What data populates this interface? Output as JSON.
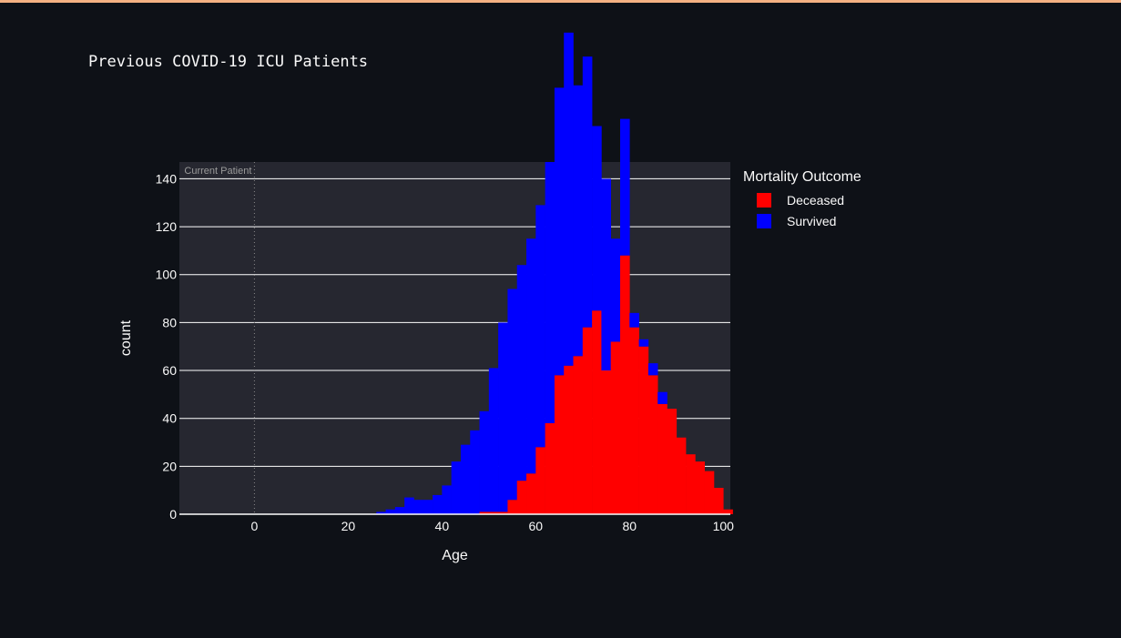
{
  "page": {
    "title": "Previous COVID-19 ICU Patients"
  },
  "colors": {
    "background": "#0e1117",
    "plot_background": "#262730",
    "grid": "#ffffff",
    "deceased": "#ff0000",
    "survived": "#0000ff",
    "annotation": "#9a9a9a",
    "top_accent": "#f4b183"
  },
  "chart_data": {
    "type": "bar",
    "subtype": "stacked-histogram",
    "xlabel": "Age",
    "ylabel": "count",
    "xlim": [
      -16,
      101.5
    ],
    "ylim": [
      0,
      147
    ],
    "xticks": [
      0,
      20,
      40,
      60,
      80,
      100
    ],
    "yticks": [
      0,
      20,
      40,
      60,
      80,
      100,
      120,
      140
    ],
    "grid": "horizontal",
    "bin_width": 2,
    "bin_starts": [
      26,
      28,
      30,
      32,
      34,
      36,
      38,
      40,
      42,
      44,
      46,
      48,
      50,
      52,
      54,
      56,
      58,
      60,
      62,
      64,
      66,
      68,
      70,
      72,
      74,
      76,
      78,
      80,
      82,
      84,
      86,
      88,
      90,
      92,
      94,
      96,
      98,
      100
    ],
    "series": [
      {
        "name": "Deceased",
        "values": [
          0,
          0,
          0,
          0,
          0,
          0,
          0,
          0,
          0,
          0,
          0,
          1,
          1,
          1,
          6,
          14,
          17,
          28,
          38,
          58,
          62,
          66,
          78,
          85,
          60,
          72,
          108,
          78,
          70,
          58,
          46,
          44,
          32,
          25,
          22,
          18,
          11,
          2
        ]
      },
      {
        "name": "Survived",
        "values": [
          1,
          2,
          3,
          7,
          6,
          6,
          8,
          12,
          22,
          29,
          35,
          42,
          60,
          79,
          88,
          90,
          98,
          101,
          109,
          120,
          139,
          113,
          113,
          77,
          80,
          43,
          57,
          6,
          3,
          5,
          5,
          0,
          0,
          0,
          0,
          0,
          0,
          0
        ]
      }
    ],
    "annotation": {
      "x": 0,
      "text": "Current Patient",
      "style": "dotted-vline"
    },
    "legend": {
      "title": "Mortality Outcome",
      "placement": "right",
      "entries": [
        "Deceased",
        "Survived"
      ]
    }
  }
}
